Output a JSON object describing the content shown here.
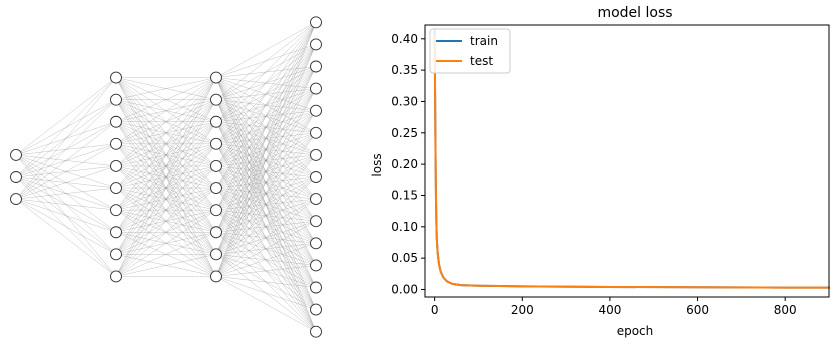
{
  "chart_data": [
    {
      "type": "network-diagram",
      "layers": [
        3,
        10,
        10,
        15
      ]
    },
    {
      "type": "line",
      "title": "model loss",
      "xlabel": "epoch",
      "ylabel": "loss",
      "xlim": [
        -22,
        900
      ],
      "ylim": [
        -0.012,
        0.422
      ],
      "x_ticks": [
        0,
        200,
        400,
        600,
        800
      ],
      "x_tick_labels": [
        "0",
        "200",
        "400",
        "600",
        "800"
      ],
      "y_ticks": [
        0.0,
        0.05,
        0.1,
        0.15,
        0.2,
        0.25,
        0.3,
        0.35,
        0.4
      ],
      "y_tick_labels": [
        "0.00",
        "0.05",
        "0.10",
        "0.15",
        "0.20",
        "0.25",
        "0.30",
        "0.35",
        "0.40"
      ],
      "grid": false,
      "legend_position": "top-left",
      "series": [
        {
          "name": "train",
          "color": "#1f77b4",
          "points": [
            [
              0,
              0.415
            ],
            [
              1,
              0.32
            ],
            [
              2,
              0.22
            ],
            [
              3,
              0.15
            ],
            [
              4,
              0.105
            ],
            [
              5,
              0.08
            ],
            [
              7,
              0.058
            ],
            [
              10,
              0.04
            ],
            [
              14,
              0.028
            ],
            [
              20,
              0.019
            ],
            [
              28,
              0.013
            ],
            [
              40,
              0.009
            ],
            [
              60,
              0.007
            ],
            [
              100,
              0.006
            ],
            [
              200,
              0.005
            ],
            [
              400,
              0.004
            ],
            [
              600,
              0.0035
            ],
            [
              800,
              0.003
            ],
            [
              900,
              0.003
            ]
          ]
        },
        {
          "name": "test",
          "color": "#ff7f0e",
          "points": [
            [
              0,
              0.405
            ],
            [
              1,
              0.31
            ],
            [
              2,
              0.215
            ],
            [
              3,
              0.148
            ],
            [
              4,
              0.104
            ],
            [
              5,
              0.079
            ],
            [
              7,
              0.057
            ],
            [
              10,
              0.04
            ],
            [
              14,
              0.028
            ],
            [
              20,
              0.019
            ],
            [
              28,
              0.013
            ],
            [
              40,
              0.009
            ],
            [
              60,
              0.007
            ],
            [
              100,
              0.006
            ],
            [
              200,
              0.005
            ],
            [
              400,
              0.004
            ],
            [
              600,
              0.0035
            ],
            [
              800,
              0.003
            ],
            [
              900,
              0.003
            ]
          ]
        }
      ]
    }
  ]
}
